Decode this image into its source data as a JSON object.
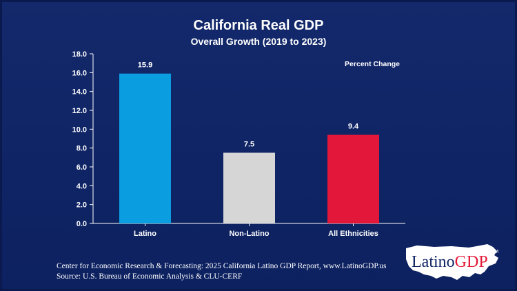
{
  "chart_data": {
    "type": "bar",
    "title": "California Real GDP",
    "subtitle": "Overall Growth (2019 to 2023)",
    "categories": [
      "Latino",
      "Non-Latino",
      "All Ethnicities"
    ],
    "values": [
      15.9,
      7.5,
      9.4
    ],
    "value_labels": [
      "15.9",
      "7.5",
      "9.4"
    ],
    "bar_colors": [
      "#0a9de0",
      "#d6d6d6",
      "#e3173a"
    ],
    "ylim": [
      0,
      18
    ],
    "yticks": [
      "0.0",
      "2.0",
      "4.0",
      "6.0",
      "8.0",
      "10.0",
      "12.0",
      "14.0",
      "16.0",
      "18.0"
    ],
    "annotation": "Percent Change",
    "xlabel": "",
    "ylabel": "",
    "grid": false
  },
  "footer": {
    "line1": "Center for Economic Research & Forecasting: 2025 California Latino GDP Report, www.LatinoGDP.us",
    "line2": "Source: U.S. Bureau of Economic Analysis & CLU-CERF"
  },
  "logo": {
    "part1": "Latino",
    "part2": "GDP",
    "tm": "TM"
  },
  "colors": {
    "background": "#0f2464",
    "text": "#ffffff"
  }
}
